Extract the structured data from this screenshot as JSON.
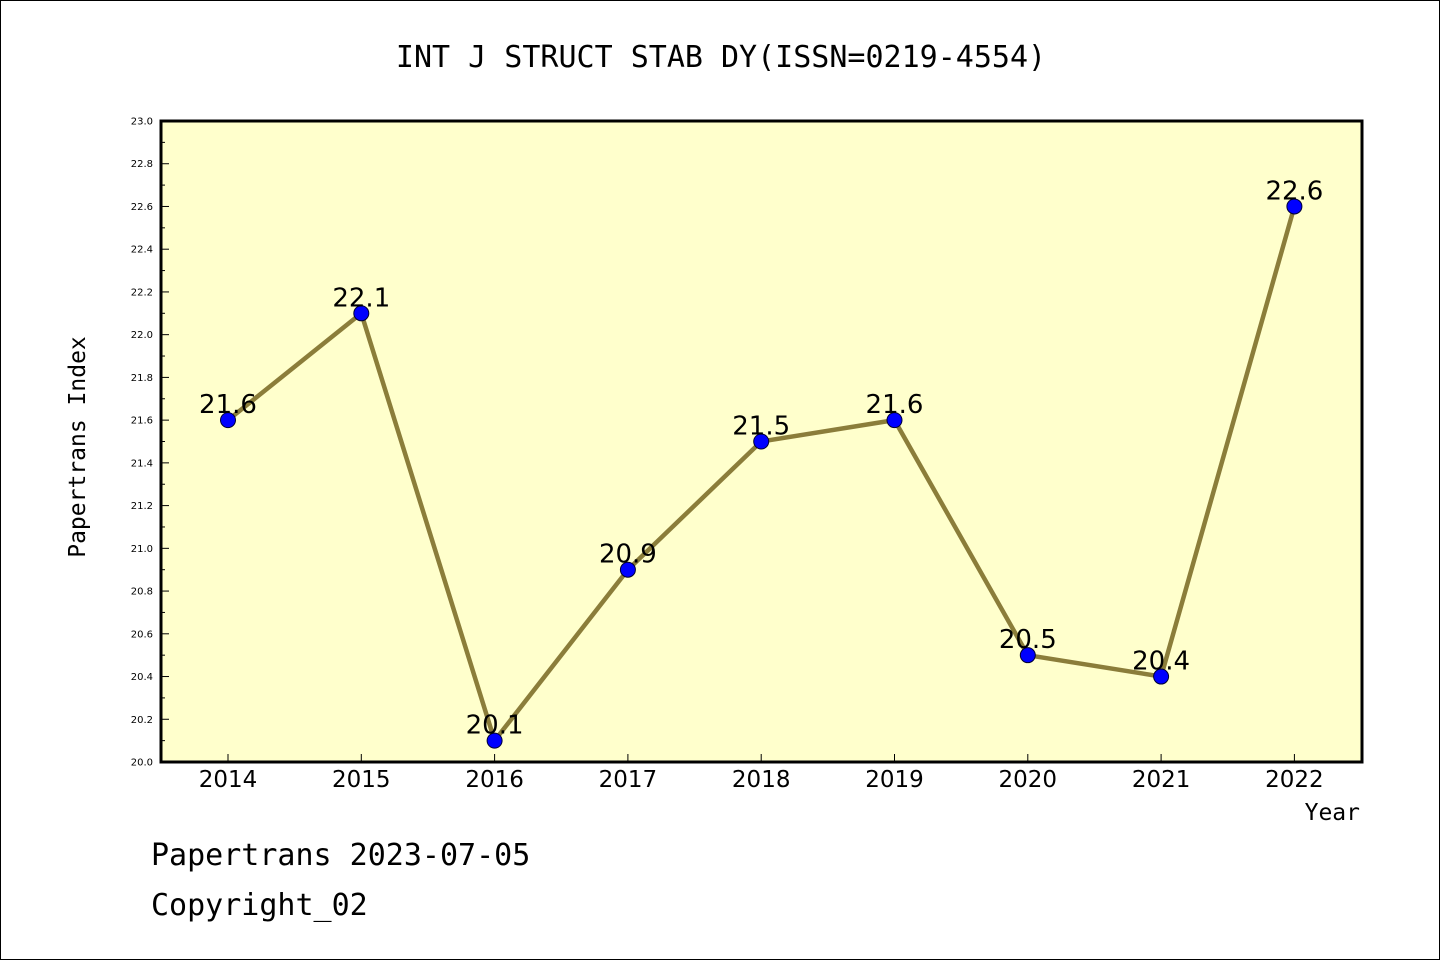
{
  "chart_data": {
    "type": "line",
    "title": "INT J STRUCT STAB DY(ISSN=0219-4554)",
    "xlabel": "Year",
    "ylabel": "Papertrans Index",
    "categories": [
      "2014",
      "2015",
      "2016",
      "2017",
      "2018",
      "2019",
      "2020",
      "2021",
      "2022"
    ],
    "series": [
      {
        "values": [
          21.6,
          22.1,
          20.1,
          20.9,
          21.5,
          21.6,
          20.5,
          20.4,
          22.6
        ]
      }
    ],
    "data_labels": [
      "21.6",
      "22.1",
      "20.1",
      "20.9",
      "21.5",
      "21.6",
      "20.5",
      "20.4",
      "22.6"
    ],
    "ylim": [
      20.0,
      23.0
    ],
    "y_ticks": [
      "20.0",
      "20.2",
      "20.4",
      "20.6",
      "20.8",
      "21.0",
      "21.2",
      "21.4",
      "21.6",
      "21.8",
      "22.0",
      "22.2",
      "22.4",
      "22.6",
      "22.8",
      "23.0"
    ],
    "grid": false,
    "legend": "none",
    "colors": {
      "plot_background": "#ffffcc",
      "line": "#8b7d3a",
      "marker": "#0000ff"
    }
  },
  "footer": {
    "line1": "Papertrans 2023-07-05",
    "line2": "Copyright_02"
  }
}
